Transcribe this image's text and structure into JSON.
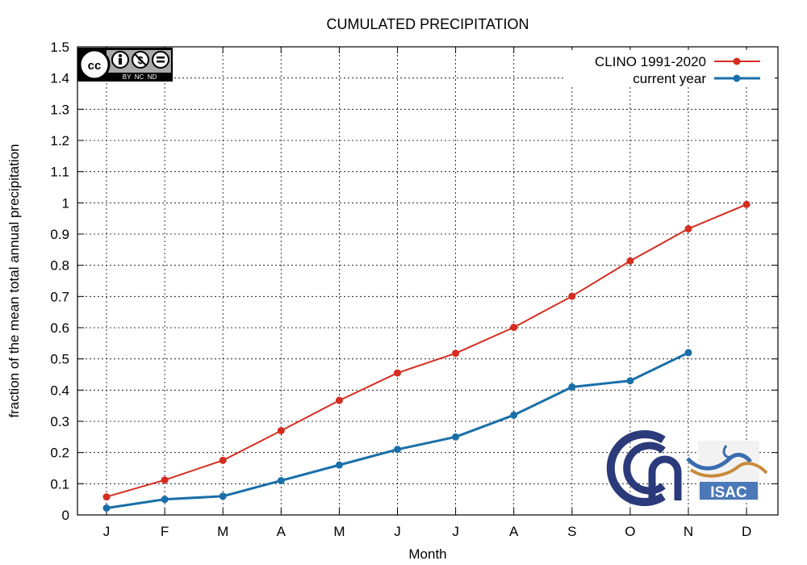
{
  "chart_data": {
    "type": "line",
    "title": "CUMULATED PRECIPITATION",
    "xlabel": "Month",
    "ylabel": "fraction of the mean total annual precipitation",
    "categories": [
      "J",
      "F",
      "M",
      "A",
      "M",
      "J",
      "J",
      "A",
      "S",
      "O",
      "N",
      "D"
    ],
    "ylim": [
      0,
      1.5
    ],
    "yticks": [
      "0",
      "0.1",
      "0.2",
      "0.3",
      "0.4",
      "0.5",
      "0.6",
      "0.7",
      "0.8",
      "0.9",
      "1",
      "1.1",
      "1.2",
      "1.3",
      "1.4",
      "1.5"
    ],
    "grid": true,
    "legend_position": "top-right",
    "series": [
      {
        "name": "CLINO 1991-2020",
        "color": "#d62d20",
        "values": [
          0.058,
          0.112,
          0.175,
          0.27,
          0.367,
          0.455,
          0.518,
          0.601,
          0.701,
          0.814,
          0.917,
          0.995
        ]
      },
      {
        "name": "current year",
        "color": "#1a6fa8",
        "values": [
          0.022,
          0.05,
          0.06,
          0.11,
          0.16,
          0.21,
          0.25,
          0.32,
          0.41,
          0.43,
          0.52,
          null
        ]
      }
    ]
  },
  "badges": {
    "cc_license": {
      "text": "BY  NC  ND"
    },
    "logo_isac": {
      "text": "ISAC"
    }
  }
}
